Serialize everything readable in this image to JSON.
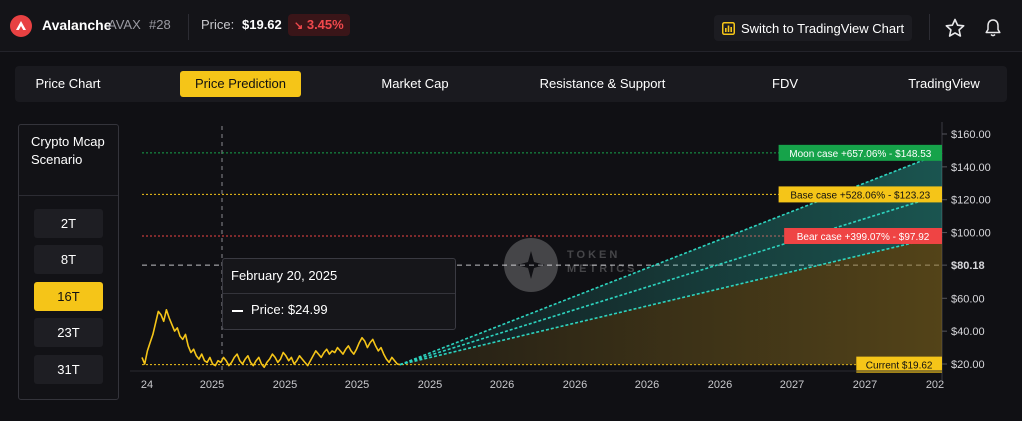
{
  "header": {
    "coin_name": "Avalanche",
    "symbol": "AVAX",
    "rank": "#28",
    "price_label": "Price:",
    "price_value": "$19.62",
    "change": "3.45%",
    "change_arrow": "↘",
    "tradingview_button": "Switch to TradingView Chart",
    "icons": [
      "avalanche-logo-icon",
      "chart-icon",
      "star-icon",
      "bell-icon"
    ]
  },
  "tabs": [
    {
      "label": "Price Chart",
      "active": false
    },
    {
      "label": "Price Prediction",
      "active": true
    },
    {
      "label": "Market Cap",
      "active": false
    },
    {
      "label": "Resistance & Support",
      "active": false
    },
    {
      "label": "FDV",
      "active": false
    },
    {
      "label": "TradingView",
      "active": false
    }
  ],
  "scenario": {
    "title": "Crypto Mcap Scenario",
    "options": [
      "2T",
      "8T",
      "16T",
      "23T",
      "31T"
    ],
    "selected": "16T"
  },
  "tooltip": {
    "date": "February 20, 2025",
    "price_label": "Price: $24.99"
  },
  "watermark": {
    "line1": "TOKEN",
    "line2": "METRICS"
  },
  "colors": {
    "accent": "#f5c518",
    "moon": "#16a34a",
    "base": "#f5c518",
    "bear": "#ef4444",
    "projection": "#2dd4bf"
  },
  "chart_data": {
    "type": "line",
    "x_tick_labels": [
      "24",
      "2025",
      "2025",
      "2025",
      "2025",
      "2026",
      "2026",
      "2026",
      "2026",
      "2027",
      "2027",
      "202"
    ],
    "y_ticks": [
      "$160.00",
      "$140.00",
      "$120.00",
      "$100.00",
      "$80.18",
      "$60.00",
      "$40.00",
      "$20.00"
    ],
    "ylim": [
      15,
      165
    ],
    "crosshair_y": 80.18,
    "series": [
      {
        "values": [
          24,
          20,
          28,
          33,
          38,
          45,
          52,
          50,
          46,
          53,
          48,
          44,
          40,
          42,
          37,
          35,
          38,
          31,
          27,
          29,
          25,
          23,
          26,
          22,
          21,
          24,
          20,
          19,
          22,
          21,
          24,
          22,
          19,
          21,
          24,
          26,
          22,
          20,
          23,
          25,
          21,
          19,
          22,
          24,
          20,
          18,
          21,
          23,
          26,
          24,
          21,
          23,
          27,
          25,
          22,
          24,
          20,
          22,
          25,
          23,
          21,
          19,
          22,
          25,
          28,
          26,
          24,
          27,
          29,
          26,
          28,
          27,
          30,
          28,
          26,
          29,
          31,
          28,
          26,
          29,
          33,
          36,
          34,
          30,
          33,
          35,
          31,
          28,
          30,
          26,
          23,
          21,
          24,
          22,
          20,
          19.62
        ]
      },
      {
        "name": "Current",
        "value": 19.62
      },
      {
        "name": "Moon case",
        "value": 148.53,
        "pct": "+657.06%"
      },
      {
        "name": "Base case",
        "value": 123.23,
        "pct": "+528.06%"
      },
      {
        "name": "Bear case",
        "value": 97.92,
        "pct": "+399.07%"
      }
    ],
    "labels": {
      "moon": "Moon case +657.06% - $148.53",
      "base": "Base case +528.06% - $123.23",
      "bear": "Bear case +399.07% - $97.92",
      "current": "Current $19.62"
    }
  }
}
